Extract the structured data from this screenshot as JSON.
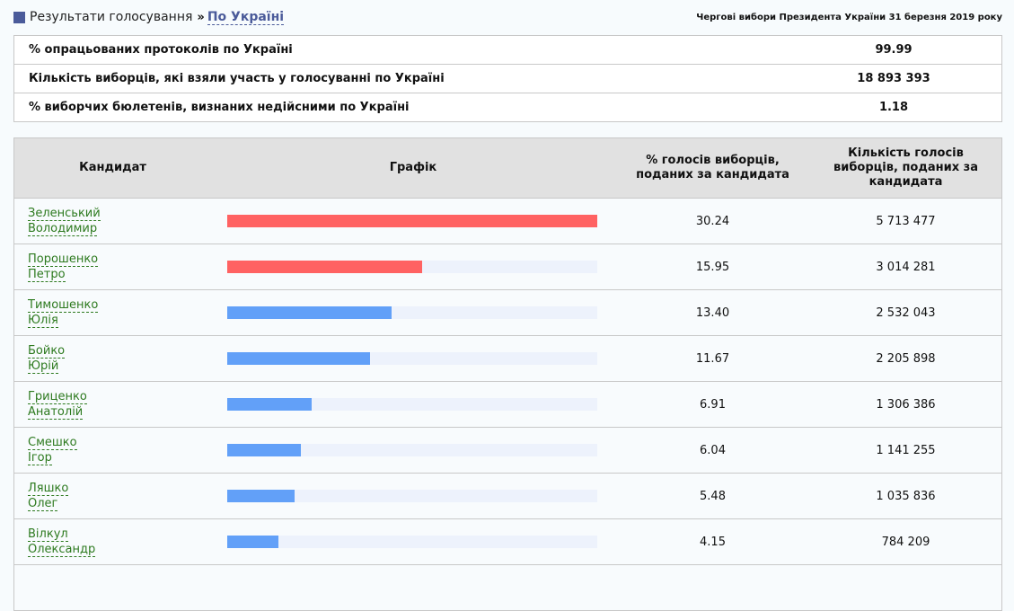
{
  "breadcrumb": {
    "root": "Результати голосування",
    "separator": "»",
    "current": "По Україні"
  },
  "election_title": "Чергові вибори Президента України 31 березня 2019 року",
  "summary": [
    {
      "label": "% опрацьованих протоколів по Україні",
      "value": "99.99"
    },
    {
      "label": "Кількість виборців, які взяли участь у голосуванні по Україні",
      "value": "18 893 393"
    },
    {
      "label": "% виборчих бюлетенів, визнаних недійсними по Україні",
      "value": "1.18"
    }
  ],
  "results": {
    "headers": {
      "candidate": "Кандидат",
      "graph": "Графік",
      "percent": "% голосів виборців, поданих за кандидата",
      "votes": "Кількість голосів виборців, поданих за кандидата"
    },
    "colors": {
      "leader": "#ff6262",
      "other": "#62a0f8",
      "track": "#edf2fc"
    },
    "rows": [
      {
        "surname": "Зеленський",
        "given": "Володимир",
        "percent": "30.24",
        "votes": "5 713 477",
        "bar": "leader"
      },
      {
        "surname": "Порошенко",
        "given": "Петро",
        "percent": "15.95",
        "votes": "3 014 281",
        "bar": "leader"
      },
      {
        "surname": "Тимошенко",
        "given": "Юлія",
        "percent": "13.40",
        "votes": "2 532 043",
        "bar": "other"
      },
      {
        "surname": "Бойко",
        "given": "Юрій",
        "percent": "11.67",
        "votes": "2 205 898",
        "bar": "other"
      },
      {
        "surname": "Гриценко",
        "given": "Анатолій",
        "percent": "6.91",
        "votes": "1 306 386",
        "bar": "other"
      },
      {
        "surname": "Смешко",
        "given": "Ігор",
        "percent": "6.04",
        "votes": "1 141 255",
        "bar": "other"
      },
      {
        "surname": "Ляшко",
        "given": "Олег",
        "percent": "5.48",
        "votes": "1 035 836",
        "bar": "other"
      },
      {
        "surname": "Вілкул",
        "given": "Олександр",
        "percent": "4.15",
        "votes": "784 209",
        "bar": "other"
      }
    ]
  }
}
